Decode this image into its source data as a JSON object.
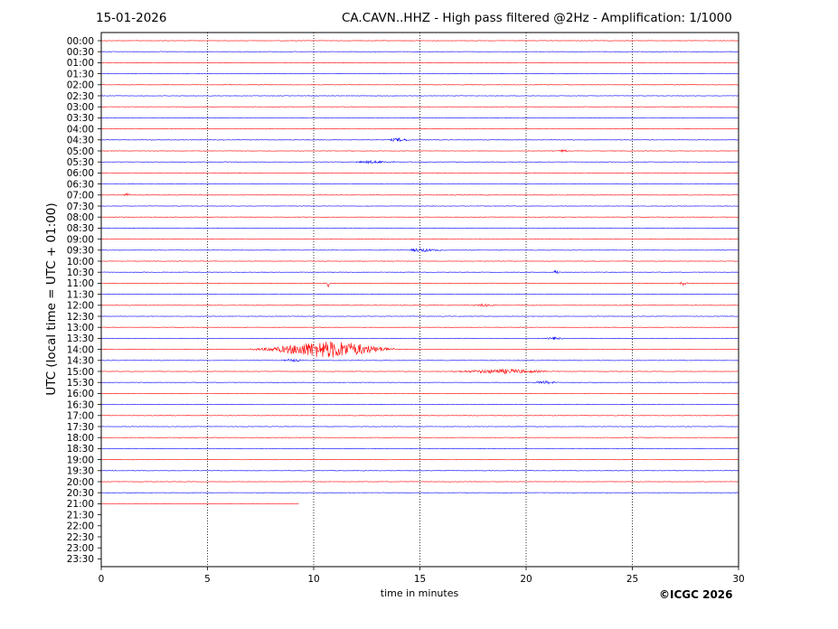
{
  "header": {
    "date": "15-01-2026",
    "title": "CA.CAVN..HHZ - High pass filtered @2Hz - Amplification: 1/1000"
  },
  "footer": {
    "copyright": "©ICGC 2026"
  },
  "chart_data": {
    "type": "line",
    "title": "CA.CAVN..HHZ - High pass filtered @2Hz - Amplification: 1/1000",
    "xlabel": "time in minutes",
    "ylabel": "UTC (local time = UTC + 01:00)",
    "xlim": [
      0,
      30
    ],
    "x_ticks": [
      0,
      5,
      10,
      15,
      20,
      25,
      30
    ],
    "y_ticks": [
      "00:00",
      "00:30",
      "01:00",
      "01:30",
      "02:00",
      "02:30",
      "03:00",
      "03:30",
      "04:00",
      "04:30",
      "05:00",
      "05:30",
      "06:00",
      "06:30",
      "07:00",
      "07:30",
      "08:00",
      "08:30",
      "09:00",
      "09:30",
      "10:00",
      "10:30",
      "11:00",
      "11:30",
      "12:00",
      "12:30",
      "13:00",
      "13:30",
      "14:00",
      "14:30",
      "15:00",
      "15:30",
      "16:00",
      "16:30",
      "17:00",
      "17:30",
      "18:00",
      "18:30",
      "19:00",
      "19:30",
      "20:00",
      "20:30",
      "21:00",
      "21:30",
      "22:00",
      "22:30",
      "23:00",
      "23:30"
    ],
    "grid": "vertical dotted at 5-minute ticks",
    "trace_colors": [
      "#ff0000",
      "#0000ff"
    ],
    "recorded_until": {
      "row": "21:00",
      "minutes": 9.3
    },
    "events": [
      {
        "row": "14:00",
        "start_min": 7.0,
        "end_min": 13.8,
        "peak_min": 10.7,
        "peak_amp": 9,
        "color": "#ff0000"
      },
      {
        "row": "11:00",
        "start_min": 10.6,
        "end_min": 10.8,
        "peak_min": 10.7,
        "peak_amp": 5,
        "color": "#ff0000"
      },
      {
        "row": "15:00",
        "start_min": 16.5,
        "end_min": 21.0,
        "peak_min": 19.0,
        "peak_amp": 2,
        "color": "#ff0000"
      },
      {
        "row": "04:30",
        "start_min": 13.5,
        "end_min": 14.6,
        "peak_min": 14.0,
        "peak_amp": 1.5,
        "color": "#0000ff"
      },
      {
        "row": "09:30",
        "start_min": 14.6,
        "end_min": 16.0,
        "peak_min": 15.0,
        "peak_amp": 1.5,
        "color": "#0000ff"
      },
      {
        "row": "10:30",
        "start_min": 21.3,
        "end_min": 21.6,
        "peak_min": 21.4,
        "peak_amp": 2,
        "color": "#0000ff"
      },
      {
        "row": "11:00",
        "start_min": 27.2,
        "end_min": 27.6,
        "peak_min": 27.4,
        "peak_amp": 2,
        "color": "#ff0000"
      },
      {
        "row": "07:00",
        "start_min": 1.0,
        "end_min": 1.4,
        "peak_min": 1.2,
        "peak_amp": 1.5,
        "color": "#ff0000"
      },
      {
        "row": "14:30",
        "start_min": 8.5,
        "end_min": 9.5,
        "peak_min": 9.0,
        "peak_amp": 1.2,
        "color": "#0000ff"
      },
      {
        "row": "15:30",
        "start_min": 20.5,
        "end_min": 21.5,
        "peak_min": 20.9,
        "peak_amp": 1.2,
        "color": "#0000ff"
      },
      {
        "row": "05:30",
        "start_min": 12.0,
        "end_min": 13.8,
        "peak_min": 12.8,
        "peak_amp": 1,
        "color": "#0000ff"
      },
      {
        "row": "13:30",
        "start_min": 21.0,
        "end_min": 21.8,
        "peak_min": 21.3,
        "peak_amp": 1,
        "color": "#0000ff"
      },
      {
        "row": "05:00",
        "start_min": 21.5,
        "end_min": 22.0,
        "peak_min": 21.8,
        "peak_amp": 1,
        "color": "#ff0000"
      },
      {
        "row": "12:00",
        "start_min": 17.5,
        "end_min": 18.5,
        "peak_min": 18.0,
        "peak_amp": 1,
        "color": "#ff0000"
      }
    ]
  }
}
